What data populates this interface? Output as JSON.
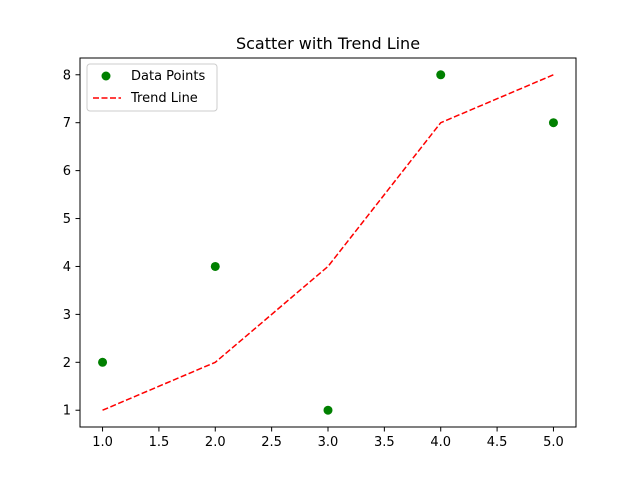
{
  "chart_data": {
    "type": "scatter",
    "title": "Scatter with Trend Line",
    "xlabel": "",
    "ylabel": "",
    "xlim": [
      0.8,
      5.2
    ],
    "ylim": [
      0.65,
      8.35
    ],
    "x_ticks": [
      1.0,
      1.5,
      2.0,
      2.5,
      3.0,
      3.5,
      4.0,
      4.5,
      5.0
    ],
    "x_tick_labels": [
      "1.0",
      "1.5",
      "2.0",
      "2.5",
      "3.0",
      "3.5",
      "4.0",
      "4.5",
      "5.0"
    ],
    "y_ticks": [
      1,
      2,
      3,
      4,
      5,
      6,
      7,
      8
    ],
    "y_tick_labels": [
      "1",
      "2",
      "3",
      "4",
      "5",
      "6",
      "7",
      "8"
    ],
    "grid": false,
    "legend_position": "top-left",
    "series": [
      {
        "name": "Data Points",
        "kind": "scatter",
        "color": "#008000",
        "x": [
          1,
          2,
          3,
          4,
          5
        ],
        "y": [
          2,
          4,
          1,
          8,
          7
        ]
      },
      {
        "name": "Trend Line",
        "kind": "line",
        "style": "dashed",
        "color": "#ff0000",
        "x": [
          1,
          2,
          3,
          4,
          5
        ],
        "y": [
          1,
          2,
          4,
          7,
          8
        ]
      }
    ]
  }
}
